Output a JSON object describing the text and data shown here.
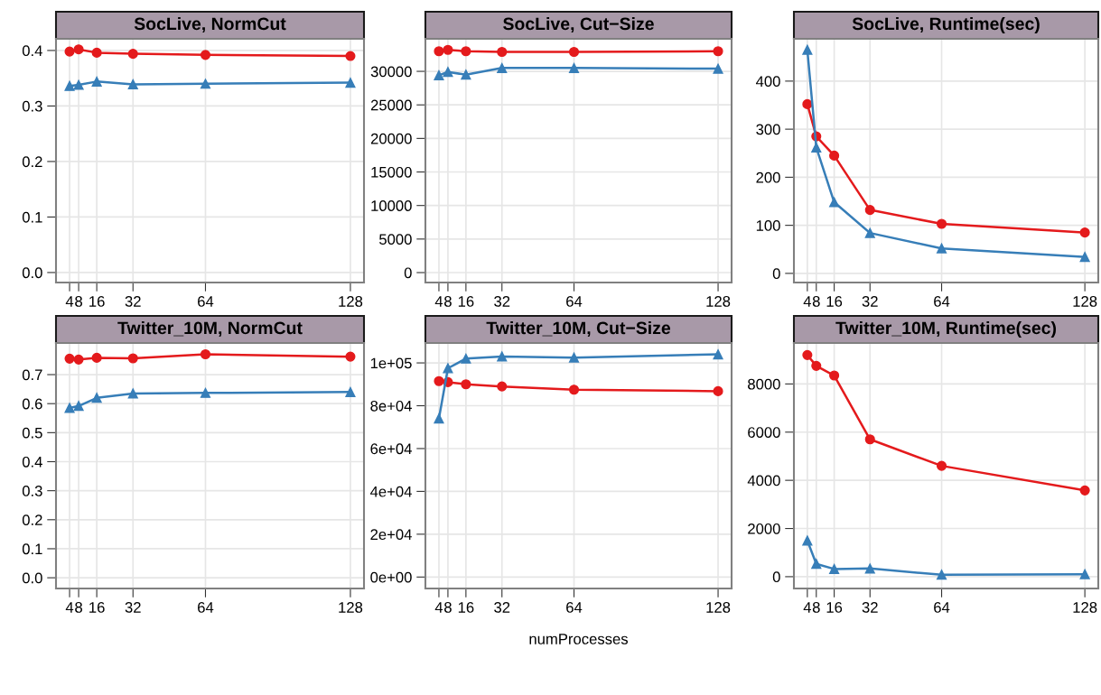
{
  "chart_data": [
    {
      "type": "line",
      "title": "SocLive, NormCut",
      "x": [
        4,
        8,
        16,
        32,
        64,
        128
      ],
      "xlim": [
        -2,
        134
      ],
      "xticks": [
        4,
        8,
        16,
        32,
        64,
        128
      ],
      "ylim": [
        -0.018,
        0.421
      ],
      "yticks": [
        {
          "value": 0,
          "label": "0.0"
        },
        0.1,
        0.2,
        0.3,
        0.4
      ],
      "grid": true,
      "legend": false,
      "line_style": "solid",
      "series": [
        {
          "color": "#e41a1c",
          "marker": "circle",
          "values": [
            0.398,
            0.402,
            0.396,
            0.394,
            0.392,
            0.39
          ]
        },
        {
          "color": "#377eb8",
          "marker": "triangle",
          "values": [
            0.336,
            0.338,
            0.344,
            0.339,
            0.34,
            0.342
          ]
        }
      ]
    },
    {
      "type": "line",
      "title": "SocLive, Cut−Size",
      "x": [
        4,
        8,
        16,
        32,
        64,
        128
      ],
      "xlim": [
        -2,
        134
      ],
      "xticks": [
        4,
        8,
        16,
        32,
        64,
        128
      ],
      "ylim": [
        -1480,
        34850
      ],
      "yticks": [
        0,
        5000,
        10000,
        15000,
        20000,
        25000,
        30000
      ],
      "grid": true,
      "legend": false,
      "line_style": "solid",
      "series": [
        {
          "color": "#e41a1c",
          "marker": "circle",
          "values": [
            33000,
            33200,
            33000,
            32900,
            32900,
            33000
          ]
        },
        {
          "color": "#377eb8",
          "marker": "triangle",
          "values": [
            29400,
            29900,
            29500,
            30500,
            30500,
            30400
          ]
        }
      ]
    },
    {
      "type": "line",
      "title": "SocLive, Runtime(sec)",
      "x": [
        4,
        8,
        16,
        32,
        64,
        128
      ],
      "xlim": [
        -2,
        134
      ],
      "xticks": [
        4,
        8,
        16,
        32,
        64,
        128
      ],
      "ylim": [
        -19,
        488
      ],
      "yticks": [
        0,
        100,
        200,
        300,
        400
      ],
      "grid": true,
      "legend": false,
      "line_style": "solid",
      "series": [
        {
          "color": "#e41a1c",
          "marker": "circle",
          "values": [
            352,
            285,
            245,
            132,
            103,
            85
          ]
        },
        {
          "color": "#377eb8",
          "marker": "triangle",
          "values": [
            465,
            262,
            148,
            84,
            52,
            34
          ]
        }
      ]
    },
    {
      "type": "line",
      "title": "Twitter_10M, NormCut",
      "x": [
        4,
        8,
        16,
        32,
        64,
        128
      ],
      "xlim": [
        -2,
        134
      ],
      "xticks": [
        4,
        8,
        16,
        32,
        64,
        128
      ],
      "ylim": [
        -0.037,
        0.809
      ],
      "yticks": [
        {
          "value": 0,
          "label": "0.0"
        },
        0.1,
        0.2,
        0.3,
        0.4,
        0.5,
        0.6,
        0.7
      ],
      "grid": true,
      "legend": false,
      "line_style": "solid",
      "series": [
        {
          "color": "#e41a1c",
          "marker": "circle",
          "values": [
            0.755,
            0.752,
            0.758,
            0.756,
            0.77,
            0.762
          ]
        },
        {
          "color": "#377eb8",
          "marker": "triangle",
          "values": [
            0.585,
            0.592,
            0.62,
            0.635,
            0.637,
            0.64
          ]
        }
      ]
    },
    {
      "type": "line",
      "title": "Twitter_10M, Cut−Size",
      "xlabel": "numProcesses",
      "x": [
        4,
        8,
        16,
        32,
        64,
        128
      ],
      "xlim": [
        -2,
        134
      ],
      "xticks": [
        4,
        8,
        16,
        32,
        64,
        128
      ],
      "ylim": [
        -5350,
        109300
      ],
      "yticks": [
        {
          "value": 0,
          "label": "0e+00"
        },
        {
          "value": 20000,
          "label": "2e+04"
        },
        {
          "value": 40000,
          "label": "4e+04"
        },
        {
          "value": 60000,
          "label": "6e+04"
        },
        {
          "value": 80000,
          "label": "8e+04"
        },
        {
          "value": 100000,
          "label": "1e+05"
        }
      ],
      "grid": true,
      "legend": false,
      "line_style": "solid",
      "series": [
        {
          "color": "#e41a1c",
          "marker": "circle",
          "values": [
            91500,
            91000,
            90000,
            89000,
            87500,
            86800
          ]
        },
        {
          "color": "#377eb8",
          "marker": "triangle",
          "values": [
            74000,
            97500,
            102000,
            103000,
            102500,
            104000
          ]
        }
      ]
    },
    {
      "type": "line",
      "title": "Twitter_10M, Runtime(sec)",
      "x": [
        4,
        8,
        16,
        32,
        64,
        128
      ],
      "xlim": [
        -2,
        134
      ],
      "xticks": [
        4,
        8,
        16,
        32,
        64,
        128
      ],
      "ylim": [
        -490,
        9700
      ],
      "yticks": [
        0,
        2000,
        4000,
        6000,
        8000
      ],
      "grid": true,
      "legend": false,
      "line_style": "solid",
      "series": [
        {
          "color": "#e41a1c",
          "marker": "circle",
          "values": [
            9200,
            8750,
            8350,
            5700,
            4600,
            3580
          ]
        },
        {
          "color": "#377eb8",
          "marker": "triangle",
          "values": [
            1500,
            530,
            320,
            340,
            80,
            100
          ]
        }
      ]
    }
  ]
}
